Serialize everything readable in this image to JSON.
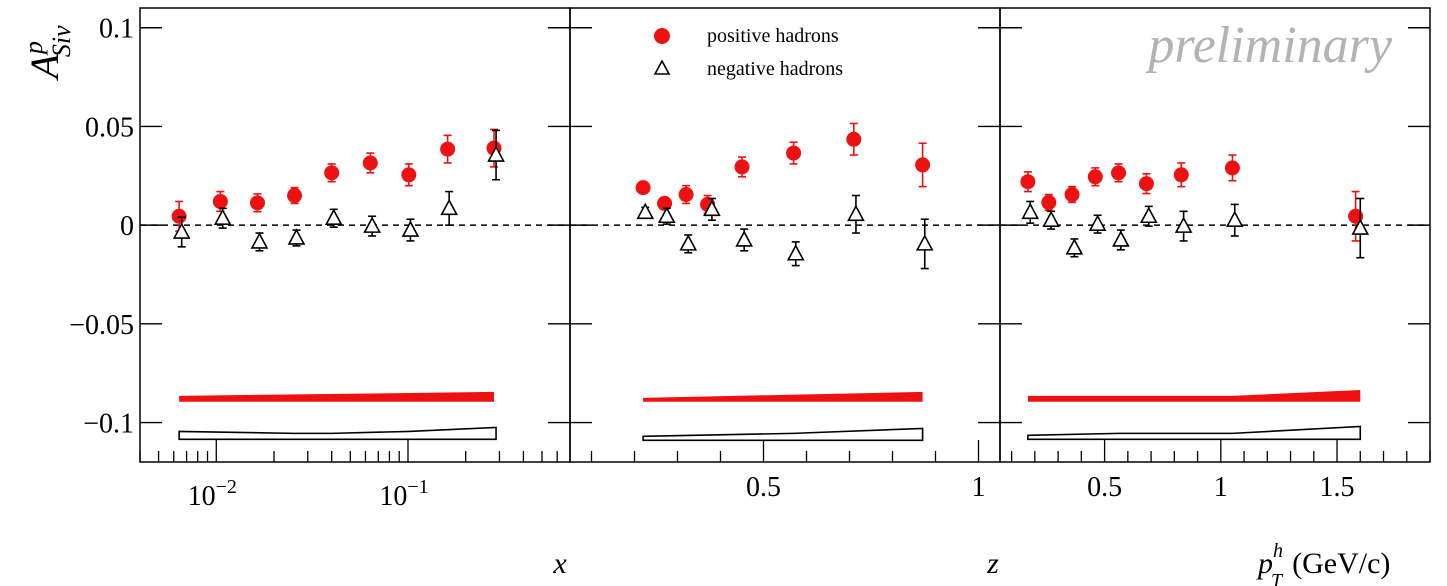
{
  "legend": {
    "positive": "positive hadrons",
    "negative": "negative hadrons",
    "position": "top-center of middle panel"
  },
  "watermark": "preliminary",
  "y_label": {
    "main": "A",
    "sup": "p",
    "sub": "Siv"
  },
  "colors": {
    "positive": "#ee1111",
    "negative": "#000000",
    "band_positive": "#ee1111"
  },
  "chart_data": [
    {
      "type": "scatter",
      "panel": "x",
      "xlabel": "x",
      "xscale": "log",
      "xlim": [
        0.004,
        0.7
      ],
      "ylim": [
        -0.12,
        0.11
      ],
      "grid": false,
      "yticks": [
        {
          "v": 0.1,
          "label": "0.1"
        },
        {
          "v": 0.05,
          "label": "0.05"
        },
        {
          "v": 0,
          "label": "0"
        },
        {
          "v": -0.05,
          "label": "−0.05"
        },
        {
          "v": -0.1,
          "label": "−0.1"
        }
      ],
      "xticks": [
        {
          "v": 0.01,
          "base": "10",
          "exp": "−2"
        },
        {
          "v": 0.1,
          "base": "10",
          "exp": "−1"
        }
      ],
      "series": [
        {
          "name": "positive hadrons",
          "x": [
            0.0064,
            0.0105,
            0.0164,
            0.0256,
            0.04,
            0.0636,
            0.101,
            0.161,
            0.281
          ],
          "y": [
            0.0045,
            0.012,
            0.0113,
            0.015,
            0.0265,
            0.0315,
            0.0255,
            0.0385,
            0.039
          ],
          "err": [
            0.0075,
            0.005,
            0.0045,
            0.004,
            0.0045,
            0.005,
            0.0055,
            0.007,
            0.0095
          ]
        },
        {
          "name": "negative hadrons",
          "x": [
            0.0066,
            0.0108,
            0.0168,
            0.0262,
            0.041,
            0.065,
            0.103,
            0.164,
            0.288
          ],
          "y": [
            -0.0035,
            0.0035,
            -0.0085,
            -0.0065,
            0.0035,
            -0.0005,
            -0.0025,
            0.0085,
            0.0355
          ],
          "err": [
            0.0075,
            0.005,
            0.0045,
            0.004,
            0.0045,
            0.005,
            0.0055,
            0.0085,
            0.0125
          ]
        }
      ],
      "band_positive": {
        "x": [
          0.0064,
          0.281
        ],
        "lower": [
          -0.0895,
          -0.0895
        ],
        "upper": [
          -0.0865,
          -0.0845
        ]
      },
      "band_negative": {
        "x": [
          0.0064,
          0.0256,
          0.04,
          0.101,
          0.288
        ],
        "lower": [
          -0.1085,
          -0.1085,
          -0.1085,
          -0.1085,
          -0.1085
        ],
        "upper": [
          -0.1045,
          -0.1055,
          -0.1055,
          -0.1045,
          -0.1025
        ]
      }
    },
    {
      "type": "scatter",
      "panel": "z",
      "xlabel": "z",
      "xscale": "linear",
      "xlim": [
        0.05,
        1.05
      ],
      "ylim": [
        -0.12,
        0.11
      ],
      "grid": false,
      "xticks": [
        {
          "v": 0.5,
          "label": "0.5"
        },
        {
          "v": 1.0,
          "label": "1"
        }
      ],
      "series": [
        {
          "name": "positive hadrons",
          "x": [
            0.22,
            0.27,
            0.32,
            0.37,
            0.45,
            0.57,
            0.71,
            0.87
          ],
          "y": [
            0.019,
            0.011,
            0.0155,
            0.0105,
            0.0295,
            0.0365,
            0.0435,
            0.0305
          ],
          "err": [
            0.002,
            0.003,
            0.0045,
            0.0045,
            0.005,
            0.0055,
            0.008,
            0.011
          ]
        },
        {
          "name": "negative hadrons",
          "x": [
            0.225,
            0.275,
            0.325,
            0.38,
            0.455,
            0.575,
            0.715,
            0.875
          ],
          "y": [
            0.0065,
            0.0045,
            -0.0095,
            0.008,
            -0.0075,
            -0.0145,
            0.0055,
            -0.0095
          ],
          "err": [
            0.0025,
            0.004,
            0.0045,
            0.0055,
            0.0055,
            0.006,
            0.0095,
            0.0125
          ]
        }
      ],
      "band_positive": {
        "x": [
          0.22,
          0.87
        ],
        "lower": [
          -0.0895,
          -0.0895
        ],
        "upper": [
          -0.0875,
          -0.0845
        ]
      },
      "band_negative": {
        "x": [
          0.22,
          0.57,
          0.87
        ],
        "lower": [
          -0.109,
          -0.109,
          -0.109
        ],
        "upper": [
          -0.107,
          -0.1055,
          -0.103
        ]
      }
    },
    {
      "type": "scatter",
      "panel": "pT",
      "xlabel": "(GeV/c)",
      "xlabel_main": "p",
      "xlabel_sup": "h",
      "xlabel_sub": "T",
      "xscale": "linear",
      "xlim": [
        0.05,
        1.9
      ],
      "ylim": [
        -0.12,
        0.11
      ],
      "grid": false,
      "xticks": [
        {
          "v": 0.5,
          "label": "0.5"
        },
        {
          "v": 1.0,
          "label": "1"
        },
        {
          "v": 1.5,
          "label": "1.5"
        }
      ],
      "series": [
        {
          "name": "positive hadrons",
          "x": [
            0.17,
            0.26,
            0.36,
            0.46,
            0.56,
            0.68,
            0.83,
            1.05,
            1.58
          ],
          "y": [
            0.022,
            0.0115,
            0.0155,
            0.0245,
            0.0265,
            0.021,
            0.0255,
            0.029,
            0.0045
          ],
          "err": [
            0.005,
            0.004,
            0.004,
            0.0045,
            0.0045,
            0.005,
            0.006,
            0.0065,
            0.0125
          ]
        },
        {
          "name": "negative hadrons",
          "x": [
            0.18,
            0.27,
            0.37,
            0.47,
            0.57,
            0.69,
            0.84,
            1.06,
            1.6
          ],
          "y": [
            0.0065,
            0.0025,
            -0.0115,
            0.0005,
            -0.0075,
            0.0045,
            -0.0005,
            0.0025,
            -0.0015
          ],
          "err": [
            0.0055,
            0.0045,
            0.0045,
            0.0045,
            0.005,
            0.005,
            0.0075,
            0.008,
            0.015
          ]
        }
      ],
      "band_positive": {
        "x": [
          0.17,
          1.05,
          1.6
        ],
        "lower": [
          -0.0895,
          -0.0895,
          -0.0895
        ],
        "upper": [
          -0.0865,
          -0.0865,
          -0.0835
        ]
      },
      "band_negative": {
        "x": [
          0.17,
          0.56,
          1.05,
          1.6
        ],
        "lower": [
          -0.1085,
          -0.1085,
          -0.1085,
          -0.1085
        ],
        "upper": [
          -0.1065,
          -0.1055,
          -0.1055,
          -0.102
        ]
      }
    }
  ]
}
